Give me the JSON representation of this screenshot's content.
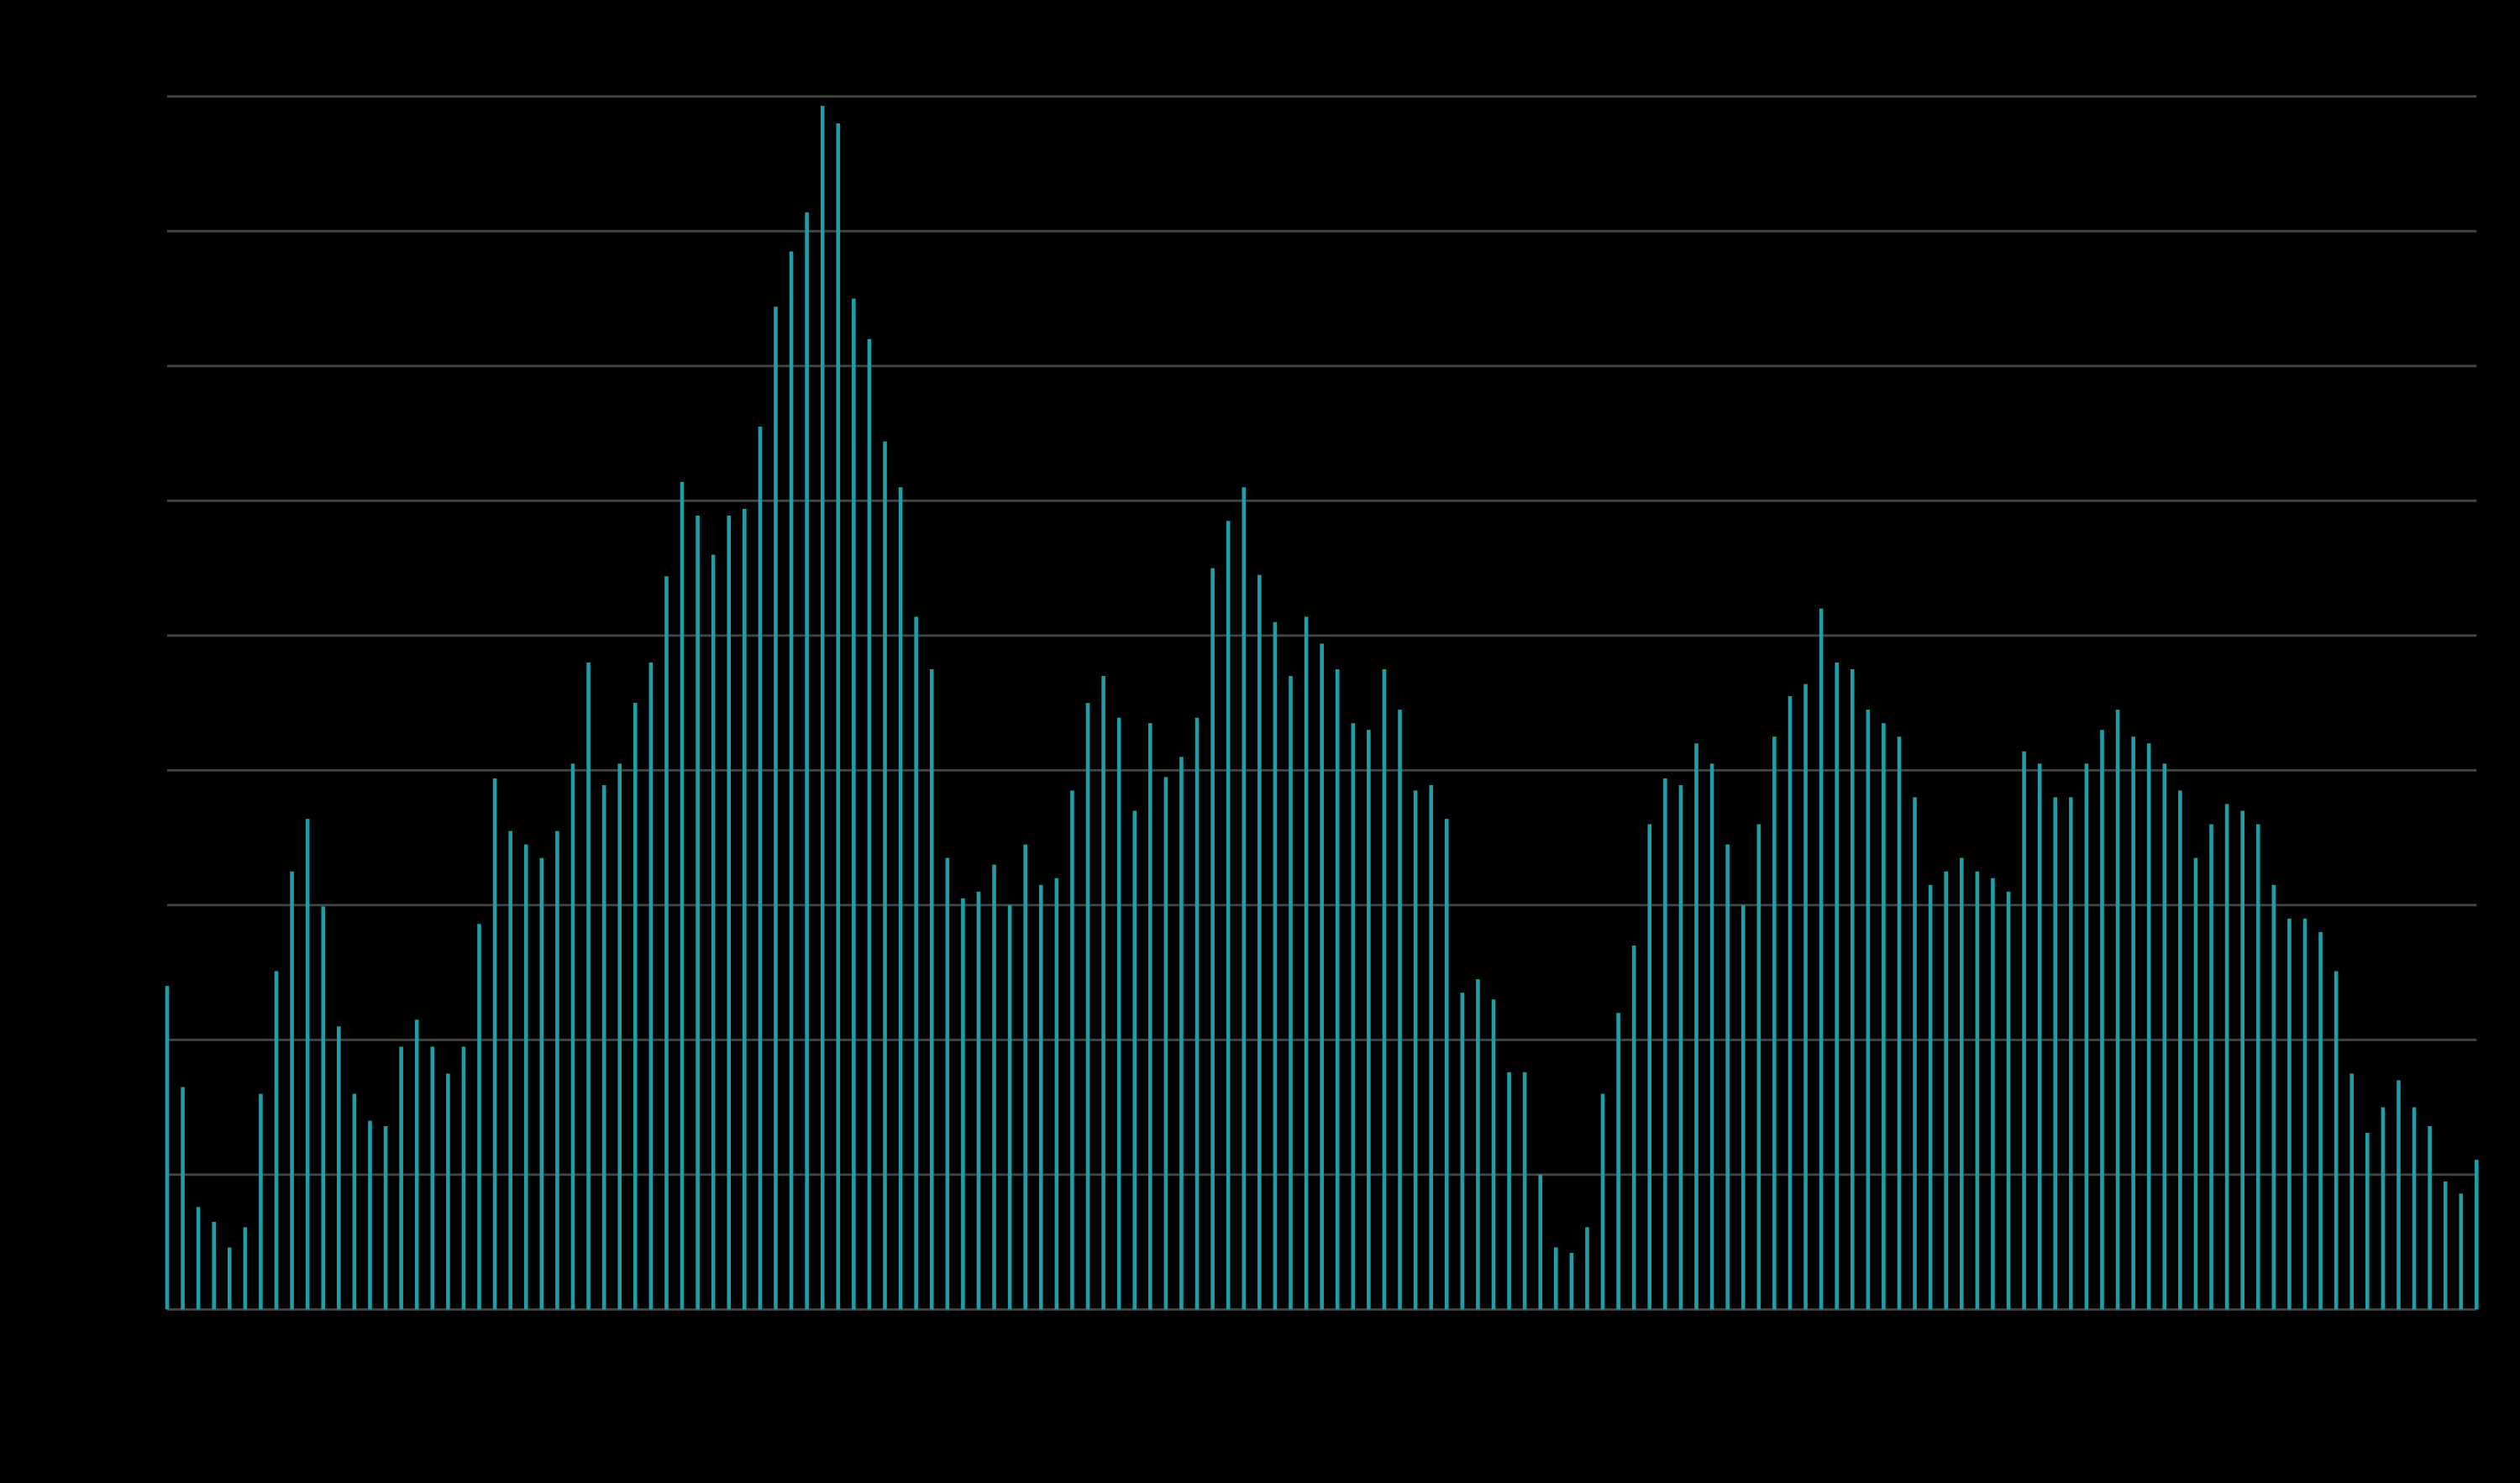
{
  "chart_data": {
    "type": "bar",
    "color": "#1f9ea8",
    "grid": true,
    "grid_color": "#444444",
    "background": "#000000",
    "ylim": [
      0,
      9
    ],
    "yticks": [
      0,
      1,
      2,
      3,
      4,
      5,
      6,
      7,
      8,
      9
    ],
    "values": [
      2.4,
      1.65,
      0.76,
      0.65,
      0.46,
      0.61,
      1.6,
      2.51,
      3.25,
      3.64,
      2.99,
      2.1,
      1.6,
      1.4,
      1.36,
      1.95,
      2.15,
      1.95,
      1.75,
      1.95,
      2.86,
      3.94,
      3.55,
      3.45,
      3.35,
      3.55,
      4.05,
      4.8,
      3.89,
      4.05,
      4.5,
      4.8,
      5.44,
      6.14,
      5.89,
      5.6,
      5.89,
      5.94,
      6.55,
      7.44,
      7.85,
      8.14,
      8.93,
      8.8,
      7.5,
      7.2,
      6.44,
      6.1,
      5.14,
      4.75,
      3.35,
      3.05,
      3.1,
      3.3,
      3.0,
      3.45,
      3.15,
      3.2,
      3.85,
      4.5,
      4.7,
      4.39,
      3.7,
      4.35,
      3.95,
      4.1,
      4.39,
      5.5,
      5.85,
      6.1,
      5.45,
      5.1,
      4.7,
      5.14,
      4.94,
      4.75,
      4.35,
      4.3,
      4.75,
      4.45,
      3.85,
      3.89,
      3.64,
      2.35,
      2.45,
      2.3,
      1.76,
      1.76,
      1.0,
      0.46,
      0.42,
      0.61,
      1.6,
      2.2,
      2.7,
      3.6,
      3.94,
      3.89,
      4.2,
      4.05,
      3.45,
      3.0,
      3.6,
      4.25,
      4.55,
      4.64,
      5.2,
      4.8,
      4.75,
      4.45,
      4.35,
      4.25,
      3.8,
      3.15,
      3.25,
      3.35,
      3.25,
      3.2,
      3.1,
      4.14,
      4.05,
      3.8,
      3.8,
      4.05,
      4.3,
      4.45,
      4.25,
      4.2,
      4.05,
      3.85,
      3.35,
      3.6,
      3.75,
      3.7,
      3.6,
      3.15,
      2.9,
      2.9,
      2.8,
      2.51,
      1.75,
      1.31,
      1.5,
      1.7,
      1.5,
      1.36,
      0.95,
      0.86,
      1.11
    ]
  }
}
